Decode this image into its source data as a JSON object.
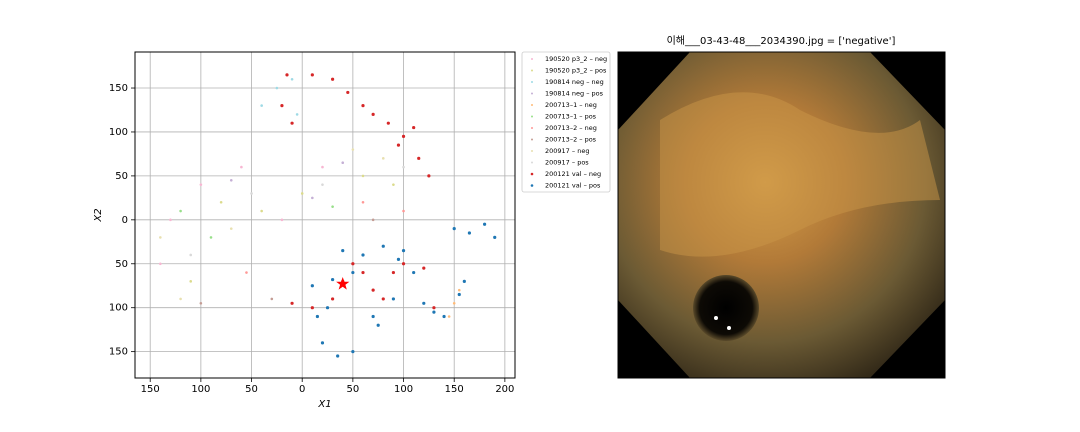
{
  "chart_data": {
    "type": "scatter",
    "title": "이해___03-43-48___2034390.jpg = ['negative']",
    "x_label": "X1",
    "y_label": "X2",
    "xlim": [
      -165,
      210
    ],
    "ylim": [
      -180,
      191
    ],
    "xticks": [
      {
        "value": -150,
        "label": "150"
      },
      {
        "value": -100,
        "label": "100"
      },
      {
        "value": -50,
        "label": "50"
      },
      0,
      50,
      100,
      150,
      200
    ],
    "yticks": [
      150,
      100,
      50,
      0,
      {
        "value": -50,
        "label": "50"
      },
      {
        "value": -100,
        "label": "100"
      },
      {
        "value": -150,
        "label": "150"
      }
    ],
    "grid": true,
    "legend": "outside upper right",
    "series": [
      {
        "name": "190520 p3_2 – neg",
        "color": "#f7b6d2",
        "x": [
          -100,
          -130,
          -60,
          20,
          -140,
          -20
        ],
        "y": [
          40,
          0,
          60,
          60,
          -50,
          0
        ]
      },
      {
        "name": "190520 p3_2 – pos",
        "color": "#dbdb8d",
        "x": [
          -80,
          -40,
          0,
          60,
          90,
          -110
        ],
        "y": [
          20,
          10,
          30,
          50,
          40,
          -70
        ]
      },
      {
        "name": "190814 neg – neg",
        "color": "#9edae5",
        "x": [
          -10,
          -25,
          -5,
          -40
        ],
        "y": [
          160,
          150,
          120,
          130
        ]
      },
      {
        "name": "190814 neg – pos",
        "color": "#c5b0d5",
        "x": [
          -70,
          10,
          40
        ],
        "y": [
          45,
          25,
          65
        ]
      },
      {
        "name": "200713–1 – neg",
        "color": "#ffbb78",
        "x": [
          145,
          150,
          155
        ],
        "y": [
          -110,
          -95,
          -80
        ]
      },
      {
        "name": "200713–1 – pos",
        "color": "#98df8a",
        "x": [
          -120,
          -90,
          30
        ],
        "y": [
          10,
          -20,
          15
        ]
      },
      {
        "name": "200713–2 – neg",
        "color": "#ff9896",
        "x": [
          -55,
          60,
          100
        ],
        "y": [
          -60,
          20,
          10
        ]
      },
      {
        "name": "200713–2 – pos",
        "color": "#c49c94",
        "x": [
          -100,
          -30,
          70
        ],
        "y": [
          -95,
          -90,
          0
        ]
      },
      {
        "name": "200917 – neg",
        "color": "#e8e0b0",
        "x": [
          -140,
          -70,
          50,
          80,
          -120
        ],
        "y": [
          -20,
          -10,
          80,
          70,
          -90
        ]
      },
      {
        "name": "200917 – pos",
        "color": "#d9d9d9",
        "x": [
          -110,
          -50,
          20,
          100
        ],
        "y": [
          -40,
          30,
          40,
          60
        ]
      },
      {
        "name": "200121 val – neg",
        "color": "#d62728",
        "x": [
          125,
          115,
          100,
          85,
          70,
          60,
          45,
          30,
          10,
          -15,
          -10,
          -20,
          50,
          40,
          30,
          10,
          -10,
          60,
          70,
          90,
          100,
          120,
          130,
          80,
          110,
          95
        ],
        "y": [
          50,
          70,
          95,
          110,
          120,
          130,
          145,
          160,
          165,
          165,
          110,
          130,
          -50,
          -70,
          -90,
          -100,
          -95,
          -60,
          -80,
          -60,
          -50,
          -55,
          -100,
          -90,
          105,
          85
        ]
      },
      {
        "name": "200121 val – pos",
        "color": "#1f77b4",
        "x": [
          10,
          30,
          50,
          60,
          80,
          100,
          110,
          90,
          70,
          50,
          35,
          20,
          15,
          25,
          150,
          165,
          180,
          190,
          130,
          120,
          140,
          155,
          160,
          40,
          95,
          75
        ],
        "y": [
          -75,
          -68,
          -60,
          -40,
          -30,
          -35,
          -60,
          -90,
          -110,
          -150,
          -155,
          -140,
          -110,
          -100,
          -10,
          -15,
          -5,
          -20,
          -105,
          -95,
          -110,
          -85,
          -70,
          -35,
          -45,
          -120
        ]
      }
    ],
    "highlight": {
      "x": 40,
      "y": -73,
      "color": "#ff0000"
    }
  }
}
